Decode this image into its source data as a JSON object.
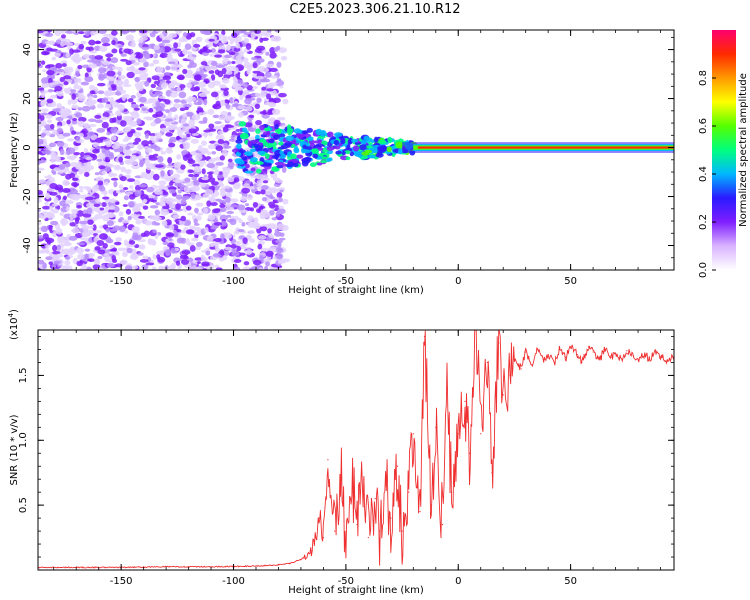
{
  "title": "C2E5.2023.306.21.10.R12",
  "chart_data": [
    {
      "type": "heatmap",
      "name": "spectrogram",
      "xlabel": "Height of straight line (km)",
      "ylabel": "Frequency (Hz)",
      "xlim": [
        -187,
        96
      ],
      "ylim": [
        -50,
        48
      ],
      "xticks": [
        -150,
        -100,
        -50,
        0,
        50
      ],
      "yticks": [
        -40,
        -20,
        0,
        20,
        40
      ],
      "colorbar": {
        "label": "Normalized spectral amplitude",
        "range": [
          0,
          1
        ],
        "ticks": [
          0.0,
          0.2,
          0.4,
          0.6,
          0.8
        ],
        "colors": [
          "#ffffff",
          "#d9b3ff",
          "#7f1fff",
          "#2a1aff",
          "#00b7ff",
          "#00ff7f",
          "#55ff00",
          "#ffff00",
          "#ff9900",
          "#ff2a00",
          "#ff006e"
        ]
      },
      "regions": [
        {
          "label": "broadband noise",
          "x": [
            -187,
            -80
          ],
          "freq": [
            -50,
            48
          ],
          "amplitude": 0.15
        },
        {
          "label": "transition",
          "x": [
            -98,
            -20
          ],
          "freq": [
            -8,
            10
          ],
          "amplitude": 0.35
        },
        {
          "label": "narrow tone",
          "x": [
            -20,
            96
          ],
          "freq": [
            -1,
            1
          ],
          "amplitude": 0.95
        }
      ]
    },
    {
      "type": "line",
      "name": "snr",
      "xlabel": "Height of straight line (km)",
      "ylabel": "SNR (10 * v/v)",
      "yscale_label": "(x10",
      "yscale_exp": "4",
      "xlim": [
        -187,
        96
      ],
      "ylim": [
        0,
        1.85
      ],
      "xticks": [
        -150,
        -100,
        -50,
        0,
        50
      ],
      "yticks": [
        0.5,
        1.0,
        1.5
      ],
      "color": "#ef2f2f",
      "series": [
        {
          "name": "SNR",
          "x": [
            -187,
            -170,
            -150,
            -130,
            -110,
            -90,
            -80,
            -75,
            -70,
            -65,
            -62,
            -60,
            -58,
            -55,
            -52,
            -50,
            -47,
            -45,
            -42,
            -40,
            -37,
            -35,
            -32,
            -30,
            -27,
            -25,
            -22,
            -20,
            -17,
            -15,
            -12,
            -10,
            -7,
            -5,
            -3,
            0,
            3,
            5,
            8,
            10,
            13,
            15,
            18,
            20,
            23,
            25,
            28,
            30,
            33,
            35,
            38,
            40,
            43,
            45,
            48,
            50,
            53,
            55,
            58,
            60,
            63,
            65,
            68,
            70,
            73,
            75,
            78,
            80,
            83,
            85,
            88,
            90,
            93,
            96
          ],
          "y": [
            0.02,
            0.02,
            0.02,
            0.025,
            0.025,
            0.03,
            0.04,
            0.05,
            0.08,
            0.15,
            0.4,
            0.25,
            0.85,
            0.3,
            0.75,
            0.2,
            0.6,
            0.35,
            0.7,
            0.25,
            0.55,
            0.3,
            0.65,
            0.4,
            0.8,
            0.3,
            0.6,
            1.05,
            0.45,
            1.8,
            0.5,
            1.1,
            0.35,
            1.4,
            0.6,
            1.05,
            1.3,
            0.9,
            1.85,
            1.05,
            1.6,
            0.75,
            1.75,
            1.35,
            1.5,
            1.62,
            1.55,
            1.68,
            1.58,
            1.7,
            1.62,
            1.66,
            1.6,
            1.7,
            1.64,
            1.72,
            1.66,
            1.6,
            1.72,
            1.68,
            1.62,
            1.7,
            1.64,
            1.67,
            1.62,
            1.69,
            1.65,
            1.62,
            1.66,
            1.63,
            1.68,
            1.64,
            1.62,
            1.65
          ]
        }
      ]
    }
  ]
}
